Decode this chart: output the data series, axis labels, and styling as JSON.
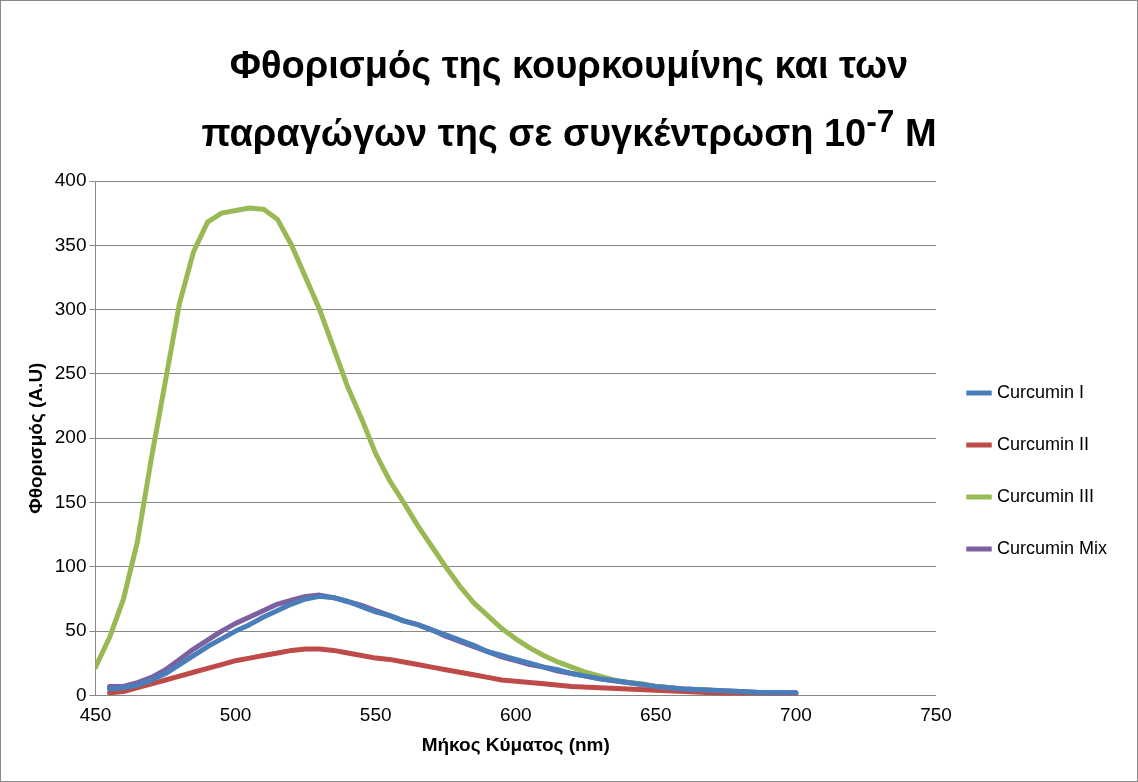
{
  "chart_data": {
    "type": "line",
    "title": "Φθορισμός της κουρκουμίνης και των παραγώγων της σε συγκέντρωση 10$^{-7}$ M",
    "xlabel": "Μήκος Κύματος (nm)",
    "ylabel": "Φθορισμός (A.U)",
    "xlim": [
      450,
      750
    ],
    "xticks": [
      450,
      500,
      550,
      600,
      650,
      700,
      750
    ],
    "ylim": [
      0,
      400
    ],
    "yticks": [
      0,
      50,
      100,
      150,
      200,
      250,
      300,
      350,
      400
    ],
    "grid": "y",
    "legend": "right",
    "series": [
      {
        "name": "Curcumin I",
        "color": "#4a7ebb",
        "x": [
          455,
          460,
          465,
          470,
          475,
          480,
          485,
          490,
          495,
          500,
          505,
          510,
          515,
          520,
          525,
          530,
          535,
          540,
          545,
          550,
          555,
          560,
          565,
          570,
          575,
          580,
          585,
          590,
          595,
          600,
          605,
          610,
          615,
          620,
          625,
          630,
          640,
          650,
          660,
          670,
          680,
          690,
          700
        ],
        "values": [
          5,
          6,
          8,
          12,
          17,
          24,
          31,
          38,
          44,
          50,
          55,
          61,
          66,
          71,
          75,
          77,
          76,
          73,
          69,
          65,
          62,
          58,
          55,
          51,
          47,
          43,
          39,
          34,
          31,
          28,
          25,
          22,
          20,
          17,
          15,
          13,
          10,
          7,
          5,
          4,
          3,
          2,
          2
        ]
      },
      {
        "name": "Curcumin II",
        "color": "#be4b48",
        "x": [
          455,
          460,
          465,
          470,
          475,
          480,
          485,
          490,
          495,
          500,
          505,
          510,
          515,
          520,
          525,
          530,
          535,
          540,
          545,
          550,
          555,
          560,
          565,
          570,
          575,
          580,
          585,
          590,
          595,
          600,
          605,
          610,
          620,
          630,
          640,
          650,
          660,
          670,
          680,
          690,
          700
        ],
        "values": [
          2,
          3,
          6,
          9,
          12,
          15,
          18,
          21,
          24,
          27,
          29,
          31,
          33,
          35,
          36,
          36,
          35,
          33,
          31,
          29,
          28,
          26,
          24,
          22,
          20,
          18,
          16,
          14,
          12,
          11,
          10,
          9,
          7,
          6,
          5,
          4,
          3,
          2,
          1,
          1,
          1
        ]
      },
      {
        "name": "Curcumin III",
        "color": "#98b954",
        "x": [
          450,
          455,
          460,
          465,
          470,
          475,
          480,
          485,
          490,
          495,
          500,
          505,
          510,
          515,
          520,
          525,
          530,
          535,
          540,
          545,
          550,
          555,
          560,
          565,
          570,
          575,
          580,
          585,
          590,
          595,
          600,
          605,
          610,
          615,
          620,
          625,
          630,
          635,
          640,
          645,
          650,
          655,
          660,
          670
        ],
        "values": [
          22,
          45,
          75,
          120,
          185,
          245,
          305,
          345,
          368,
          375,
          377,
          379,
          378,
          370,
          350,
          325,
          300,
          270,
          240,
          215,
          188,
          167,
          150,
          132,
          116,
          100,
          85,
          72,
          62,
          52,
          44,
          37,
          31,
          26,
          22,
          18,
          15,
          12,
          10,
          9,
          7,
          6,
          5,
          4
        ]
      },
      {
        "name": "Curcumin Mix",
        "color": "#7d60a0",
        "x": [
          455,
          460,
          465,
          470,
          475,
          480,
          485,
          490,
          495,
          500,
          505,
          510,
          515,
          520,
          525,
          530,
          535,
          540,
          545,
          550,
          555,
          560,
          565,
          570,
          575,
          580,
          585,
          590,
          595,
          600,
          605,
          610,
          615,
          620,
          625,
          630,
          640,
          650,
          660,
          670,
          680,
          690,
          700
        ],
        "values": [
          7,
          7,
          10,
          14,
          20,
          28,
          36,
          43,
          50,
          56,
          61,
          66,
          71,
          74,
          77,
          78,
          76,
          73,
          70,
          66,
          62,
          58,
          55,
          51,
          46,
          42,
          38,
          34,
          30,
          27,
          24,
          22,
          19,
          17,
          15,
          13,
          10,
          7,
          5,
          4,
          3,
          2,
          2
        ]
      }
    ]
  }
}
